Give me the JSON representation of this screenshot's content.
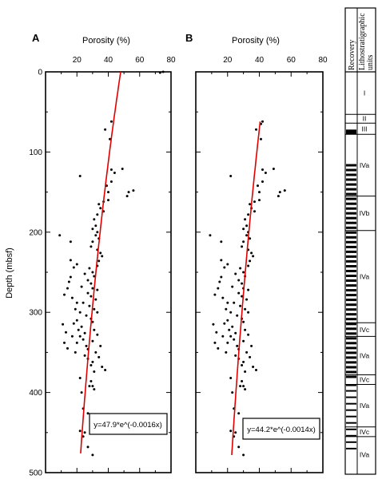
{
  "chart_data": [
    {
      "type": "scatter",
      "panel": "A",
      "xlabel": "Porosity (%)",
      "ylabel": "Depth (mbsf)",
      "xlim": [
        0,
        80
      ],
      "ylim": [
        0,
        500
      ],
      "y_inverted": true,
      "xticks": [
        "20",
        "40",
        "60",
        "80"
      ],
      "yticks": [
        "0",
        "100",
        "200",
        "300",
        "400",
        "500"
      ],
      "fit": {
        "label": "y=47.9*e^(-0.0016x)",
        "a": 47.9,
        "b": -0.0016,
        "depth_range": [
          0,
          478
        ],
        "color": "#e00000"
      },
      "points": [
        [
          75,
          0
        ],
        [
          73,
          1
        ],
        [
          42,
          62
        ],
        [
          38,
          72
        ],
        [
          41,
          84
        ],
        [
          42,
          122
        ],
        [
          44,
          126
        ],
        [
          49,
          121
        ],
        [
          42,
          137
        ],
        [
          39,
          142
        ],
        [
          40,
          150
        ],
        [
          53,
          150
        ],
        [
          56,
          148
        ],
        [
          52,
          155
        ],
        [
          40,
          160
        ],
        [
          37,
          162
        ],
        [
          34,
          165
        ],
        [
          35,
          170
        ],
        [
          37,
          174
        ],
        [
          33,
          178
        ],
        [
          22,
          130
        ],
        [
          31,
          184
        ],
        [
          32,
          192
        ],
        [
          30,
          196
        ],
        [
          33,
          200
        ],
        [
          32,
          204
        ],
        [
          34,
          208
        ],
        [
          30,
          212
        ],
        [
          29,
          218
        ],
        [
          33,
          222
        ],
        [
          35,
          226
        ],
        [
          36,
          230
        ],
        [
          34,
          236
        ],
        [
          33,
          242
        ],
        [
          9,
          204
        ],
        [
          16,
          212
        ],
        [
          28,
          245
        ],
        [
          30,
          250
        ],
        [
          25,
          252
        ],
        [
          31,
          255
        ],
        [
          27,
          260
        ],
        [
          29,
          264
        ],
        [
          23,
          268
        ],
        [
          30,
          270
        ],
        [
          33,
          272
        ],
        [
          27,
          276
        ],
        [
          29,
          280
        ],
        [
          32,
          284
        ],
        [
          24,
          288
        ],
        [
          28,
          292
        ],
        [
          31,
          296
        ],
        [
          33,
          300
        ],
        [
          26,
          304
        ],
        [
          29,
          308
        ],
        [
          30,
          312
        ],
        [
          17,
          282
        ],
        [
          20,
          288
        ],
        [
          19,
          296
        ],
        [
          22,
          300
        ],
        [
          20,
          310
        ],
        [
          18,
          314
        ],
        [
          23,
          318
        ],
        [
          21,
          322
        ],
        [
          25,
          326
        ],
        [
          22,
          330
        ],
        [
          24,
          334
        ],
        [
          20,
          338
        ],
        [
          26,
          342
        ],
        [
          27,
          346
        ],
        [
          19,
          350
        ],
        [
          25,
          354
        ],
        [
          27,
          358
        ],
        [
          14,
          270
        ],
        [
          12,
          278
        ],
        [
          15,
          262
        ],
        [
          16,
          256
        ],
        [
          18,
          244
        ],
        [
          20,
          240
        ],
        [
          16,
          235
        ],
        [
          11,
          315
        ],
        [
          13,
          325
        ],
        [
          12,
          338
        ],
        [
          14,
          345
        ],
        [
          17,
          330
        ],
        [
          31,
          322
        ],
        [
          33,
          328
        ],
        [
          30,
          336
        ],
        [
          35,
          342
        ],
        [
          32,
          350
        ],
        [
          34,
          356
        ],
        [
          30,
          362
        ],
        [
          36,
          368
        ],
        [
          38,
          372
        ],
        [
          29,
          366
        ],
        [
          31,
          374
        ],
        [
          22,
          382
        ],
        [
          29,
          386
        ],
        [
          30,
          392
        ],
        [
          31,
          396
        ],
        [
          28,
          392
        ],
        [
          23,
          400
        ],
        [
          24,
          420
        ],
        [
          27,
          426
        ],
        [
          25,
          450
        ],
        [
          27,
          468
        ],
        [
          30,
          478
        ],
        [
          22,
          448
        ],
        [
          24,
          455
        ]
      ]
    },
    {
      "type": "scatter",
      "panel": "B",
      "xlabel": "Porosity (%)",
      "ylabel": "",
      "xlim": [
        0,
        80
      ],
      "ylim": [
        0,
        500
      ],
      "y_inverted": true,
      "xticks": [
        "20",
        "40",
        "60",
        "80"
      ],
      "yticks": [],
      "fit": {
        "label": "y=44.2*e^(-0.0014x)",
        "a": 44.2,
        "b": -0.0014,
        "depth_range": [
          62,
          478
        ],
        "color": "#e00000"
      },
      "points": [
        [
          42,
          62
        ],
        [
          41,
          65
        ],
        [
          38,
          72
        ],
        [
          41,
          84
        ],
        [
          42,
          122
        ],
        [
          44,
          126
        ],
        [
          49,
          121
        ],
        [
          42,
          137
        ],
        [
          39,
          142
        ],
        [
          40,
          150
        ],
        [
          53,
          150
        ],
        [
          56,
          148
        ],
        [
          52,
          155
        ],
        [
          40,
          160
        ],
        [
          37,
          162
        ],
        [
          34,
          165
        ],
        [
          35,
          170
        ],
        [
          37,
          174
        ],
        [
          33,
          178
        ],
        [
          22,
          130
        ],
        [
          31,
          184
        ],
        [
          32,
          192
        ],
        [
          30,
          196
        ],
        [
          33,
          200
        ],
        [
          32,
          204
        ],
        [
          34,
          208
        ],
        [
          30,
          212
        ],
        [
          29,
          218
        ],
        [
          33,
          222
        ],
        [
          35,
          226
        ],
        [
          36,
          230
        ],
        [
          34,
          236
        ],
        [
          33,
          242
        ],
        [
          9,
          204
        ],
        [
          16,
          212
        ],
        [
          28,
          245
        ],
        [
          30,
          250
        ],
        [
          25,
          252
        ],
        [
          31,
          255
        ],
        [
          27,
          260
        ],
        [
          29,
          264
        ],
        [
          23,
          268
        ],
        [
          30,
          270
        ],
        [
          33,
          272
        ],
        [
          27,
          276
        ],
        [
          29,
          280
        ],
        [
          32,
          284
        ],
        [
          24,
          288
        ],
        [
          28,
          292
        ],
        [
          31,
          296
        ],
        [
          33,
          300
        ],
        [
          26,
          304
        ],
        [
          29,
          308
        ],
        [
          30,
          312
        ],
        [
          17,
          282
        ],
        [
          20,
          288
        ],
        [
          19,
          296
        ],
        [
          22,
          300
        ],
        [
          20,
          310
        ],
        [
          18,
          314
        ],
        [
          23,
          318
        ],
        [
          21,
          322
        ],
        [
          25,
          326
        ],
        [
          22,
          330
        ],
        [
          24,
          334
        ],
        [
          20,
          338
        ],
        [
          26,
          342
        ],
        [
          27,
          346
        ],
        [
          19,
          350
        ],
        [
          25,
          354
        ],
        [
          27,
          358
        ],
        [
          14,
          270
        ],
        [
          12,
          278
        ],
        [
          15,
          262
        ],
        [
          16,
          256
        ],
        [
          18,
          244
        ],
        [
          20,
          240
        ],
        [
          16,
          235
        ],
        [
          11,
          315
        ],
        [
          13,
          325
        ],
        [
          12,
          338
        ],
        [
          14,
          345
        ],
        [
          17,
          330
        ],
        [
          31,
          322
        ],
        [
          33,
          328
        ],
        [
          30,
          336
        ],
        [
          35,
          342
        ],
        [
          32,
          350
        ],
        [
          34,
          356
        ],
        [
          30,
          362
        ],
        [
          36,
          368
        ],
        [
          38,
          372
        ],
        [
          29,
          366
        ],
        [
          31,
          374
        ],
        [
          22,
          382
        ],
        [
          29,
          386
        ],
        [
          30,
          392
        ],
        [
          31,
          396
        ],
        [
          28,
          392
        ],
        [
          23,
          400
        ],
        [
          24,
          420
        ],
        [
          27,
          426
        ],
        [
          25,
          450
        ],
        [
          27,
          468
        ],
        [
          30,
          478
        ],
        [
          22,
          448
        ],
        [
          24,
          455
        ]
      ]
    }
  ],
  "column": {
    "header_recovery": "Recovery",
    "header_units": "Lithostratigraphic units",
    "units": [
      {
        "label": "I",
        "top": 0,
        "bottom": 53
      },
      {
        "label": "II",
        "top": 53,
        "bottom": 64
      },
      {
        "label": "III",
        "top": 64,
        "bottom": 78
      },
      {
        "label": "IVa",
        "top": 78,
        "bottom": 155
      },
      {
        "label": "IVb",
        "top": 155,
        "bottom": 198
      },
      {
        "label": "IVa",
        "top": 198,
        "bottom": 313
      },
      {
        "label": "IVc",
        "top": 313,
        "bottom": 330
      },
      {
        "label": "IVa",
        "top": 330,
        "bottom": 378
      },
      {
        "label": "IVc",
        "top": 378,
        "bottom": 390
      },
      {
        "label": "IVa",
        "top": 390,
        "bottom": 443
      },
      {
        "label": "IVc",
        "top": 443,
        "bottom": 455
      },
      {
        "label": "IVa",
        "top": 455,
        "bottom": 500
      }
    ],
    "recovery_black_intervals": [
      [
        72,
        78
      ],
      [
        115,
        118
      ],
      [
        121,
        124
      ],
      [
        127,
        130
      ],
      [
        133,
        136
      ],
      [
        139,
        142
      ],
      [
        145,
        148
      ],
      [
        151,
        154
      ],
      [
        157,
        160
      ],
      [
        163,
        166
      ],
      [
        169,
        172
      ],
      [
        175,
        178
      ],
      [
        181,
        184
      ],
      [
        187,
        190
      ],
      [
        193,
        196
      ],
      [
        199,
        202
      ],
      [
        205,
        208
      ],
      [
        211,
        214
      ],
      [
        217,
        220
      ],
      [
        223,
        226
      ],
      [
        229,
        232
      ],
      [
        235,
        238
      ],
      [
        241,
        244
      ],
      [
        247,
        250
      ],
      [
        253,
        256
      ],
      [
        259,
        262
      ],
      [
        265,
        268
      ],
      [
        271,
        274
      ],
      [
        277,
        280
      ],
      [
        283,
        286
      ],
      [
        289,
        292
      ],
      [
        295,
        298
      ],
      [
        301,
        304
      ],
      [
        307,
        310
      ],
      [
        313,
        316
      ],
      [
        319,
        322
      ],
      [
        325,
        328
      ],
      [
        331,
        334
      ],
      [
        337,
        340
      ],
      [
        343,
        346
      ],
      [
        349,
        352
      ],
      [
        355,
        358
      ],
      [
        361,
        364
      ],
      [
        367,
        370
      ],
      [
        373,
        376
      ],
      [
        379,
        382
      ],
      [
        390,
        392
      ],
      [
        397,
        399
      ],
      [
        405,
        407
      ],
      [
        413,
        415
      ],
      [
        421,
        423
      ],
      [
        429,
        431
      ],
      [
        437,
        439
      ],
      [
        445,
        447
      ],
      [
        453,
        455
      ],
      [
        461,
        463
      ],
      [
        469,
        471
      ]
    ]
  }
}
